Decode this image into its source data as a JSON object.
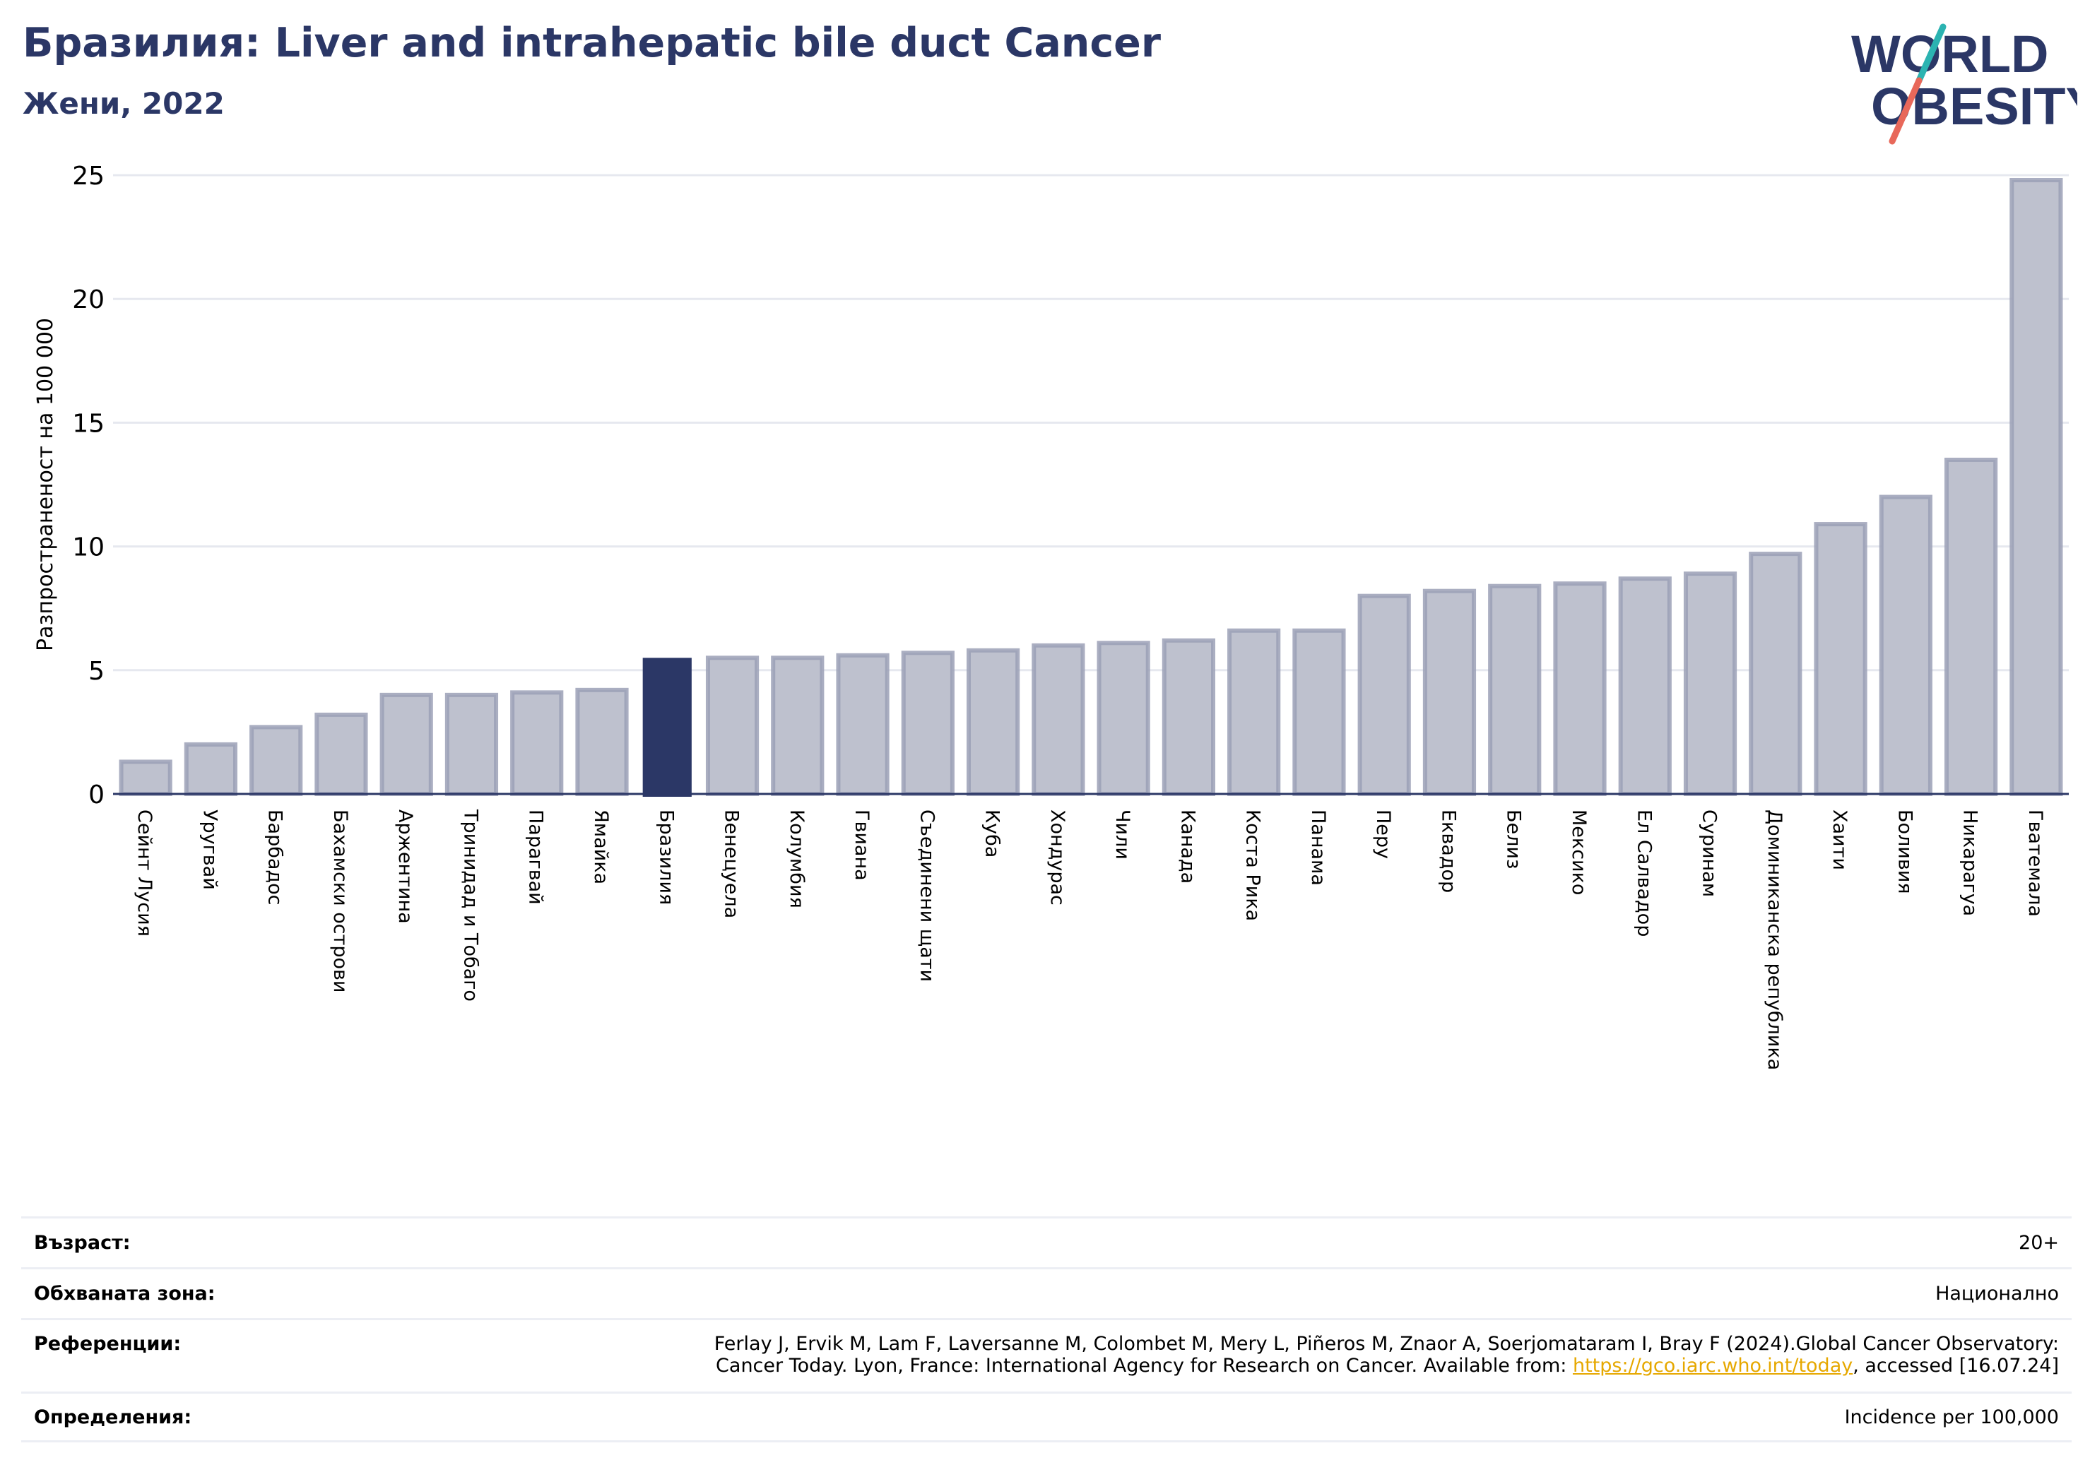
{
  "header": {
    "title": "Бразилия: Liver and intrahepatic bile duct Cancer",
    "subtitle": "Жени, 2022"
  },
  "logo": {
    "line1": "WORLD",
    "line2": "OBESITY",
    "colors": {
      "text": "#2b3766",
      "slash_top": "#2bb3b1",
      "slash_bottom": "#e8685a"
    }
  },
  "colors": {
    "bar_default": "#bec1ce",
    "bar_border": "#9ba0b6",
    "bar_highlight": "#2b3766",
    "grid": "#e6e8ef",
    "axis": "#2b3766"
  },
  "chart_data": {
    "type": "bar",
    "ylabel": "Разпространеност  на 100 000",
    "ylim": [
      0,
      25
    ],
    "yticks": [
      0,
      5,
      10,
      15,
      20,
      25
    ],
    "grid": true,
    "highlight": "Бразилия",
    "categories": [
      "Сейнт Лусия",
      "Уругвай",
      "Барбадос",
      "Бахамски острови",
      "Аржентина",
      "Тринидад и Тобаго",
      "Парагвай",
      "Ямайка",
      "Бразилия",
      "Венецуела",
      "Колумбия",
      "Гвиана",
      "Съединени щати",
      "Куба",
      "Хондурас",
      "Чили",
      "Канада",
      "Коста Рика",
      "Панама",
      "Перу",
      "Еквадор",
      "Белиз",
      "Мексико",
      "Ел Салвадор",
      "Суринам",
      "Доминиканска република",
      "Хаити",
      "Боливия",
      "Никарагуа",
      "Гватемала"
    ],
    "values": [
      1.3,
      2.0,
      2.7,
      3.2,
      4.0,
      4.0,
      4.1,
      4.2,
      5.5,
      5.5,
      5.5,
      5.6,
      5.7,
      5.8,
      6.0,
      6.1,
      6.2,
      6.6,
      6.6,
      8.0,
      8.2,
      8.4,
      8.5,
      8.7,
      8.9,
      9.7,
      10.9,
      12.0,
      13.5,
      24.8
    ]
  },
  "footer": {
    "age_label": "Възраст:",
    "age_value": "20+",
    "coverage_label": "Обхваната зона:",
    "coverage_value": "Национално",
    "references_label": "Референции:",
    "references_line1": "Ferlay J, Ervik M, Lam F, Laversanne M, Colombet M, Mery L, Piñeros M, Znaor A, Soerjomataram I, Bray F (2024).Global Cancer Observatory:",
    "references_line2_pre": "Cancer Today. Lyon, France: International Agency for Research on Cancer. Available from: ",
    "references_link": "https://gco.iarc.who.int/today",
    "references_line2_post": ", accessed [16.07.24]",
    "definitions_label": "Определения:",
    "definitions_value": "Incidence per 100,000"
  }
}
